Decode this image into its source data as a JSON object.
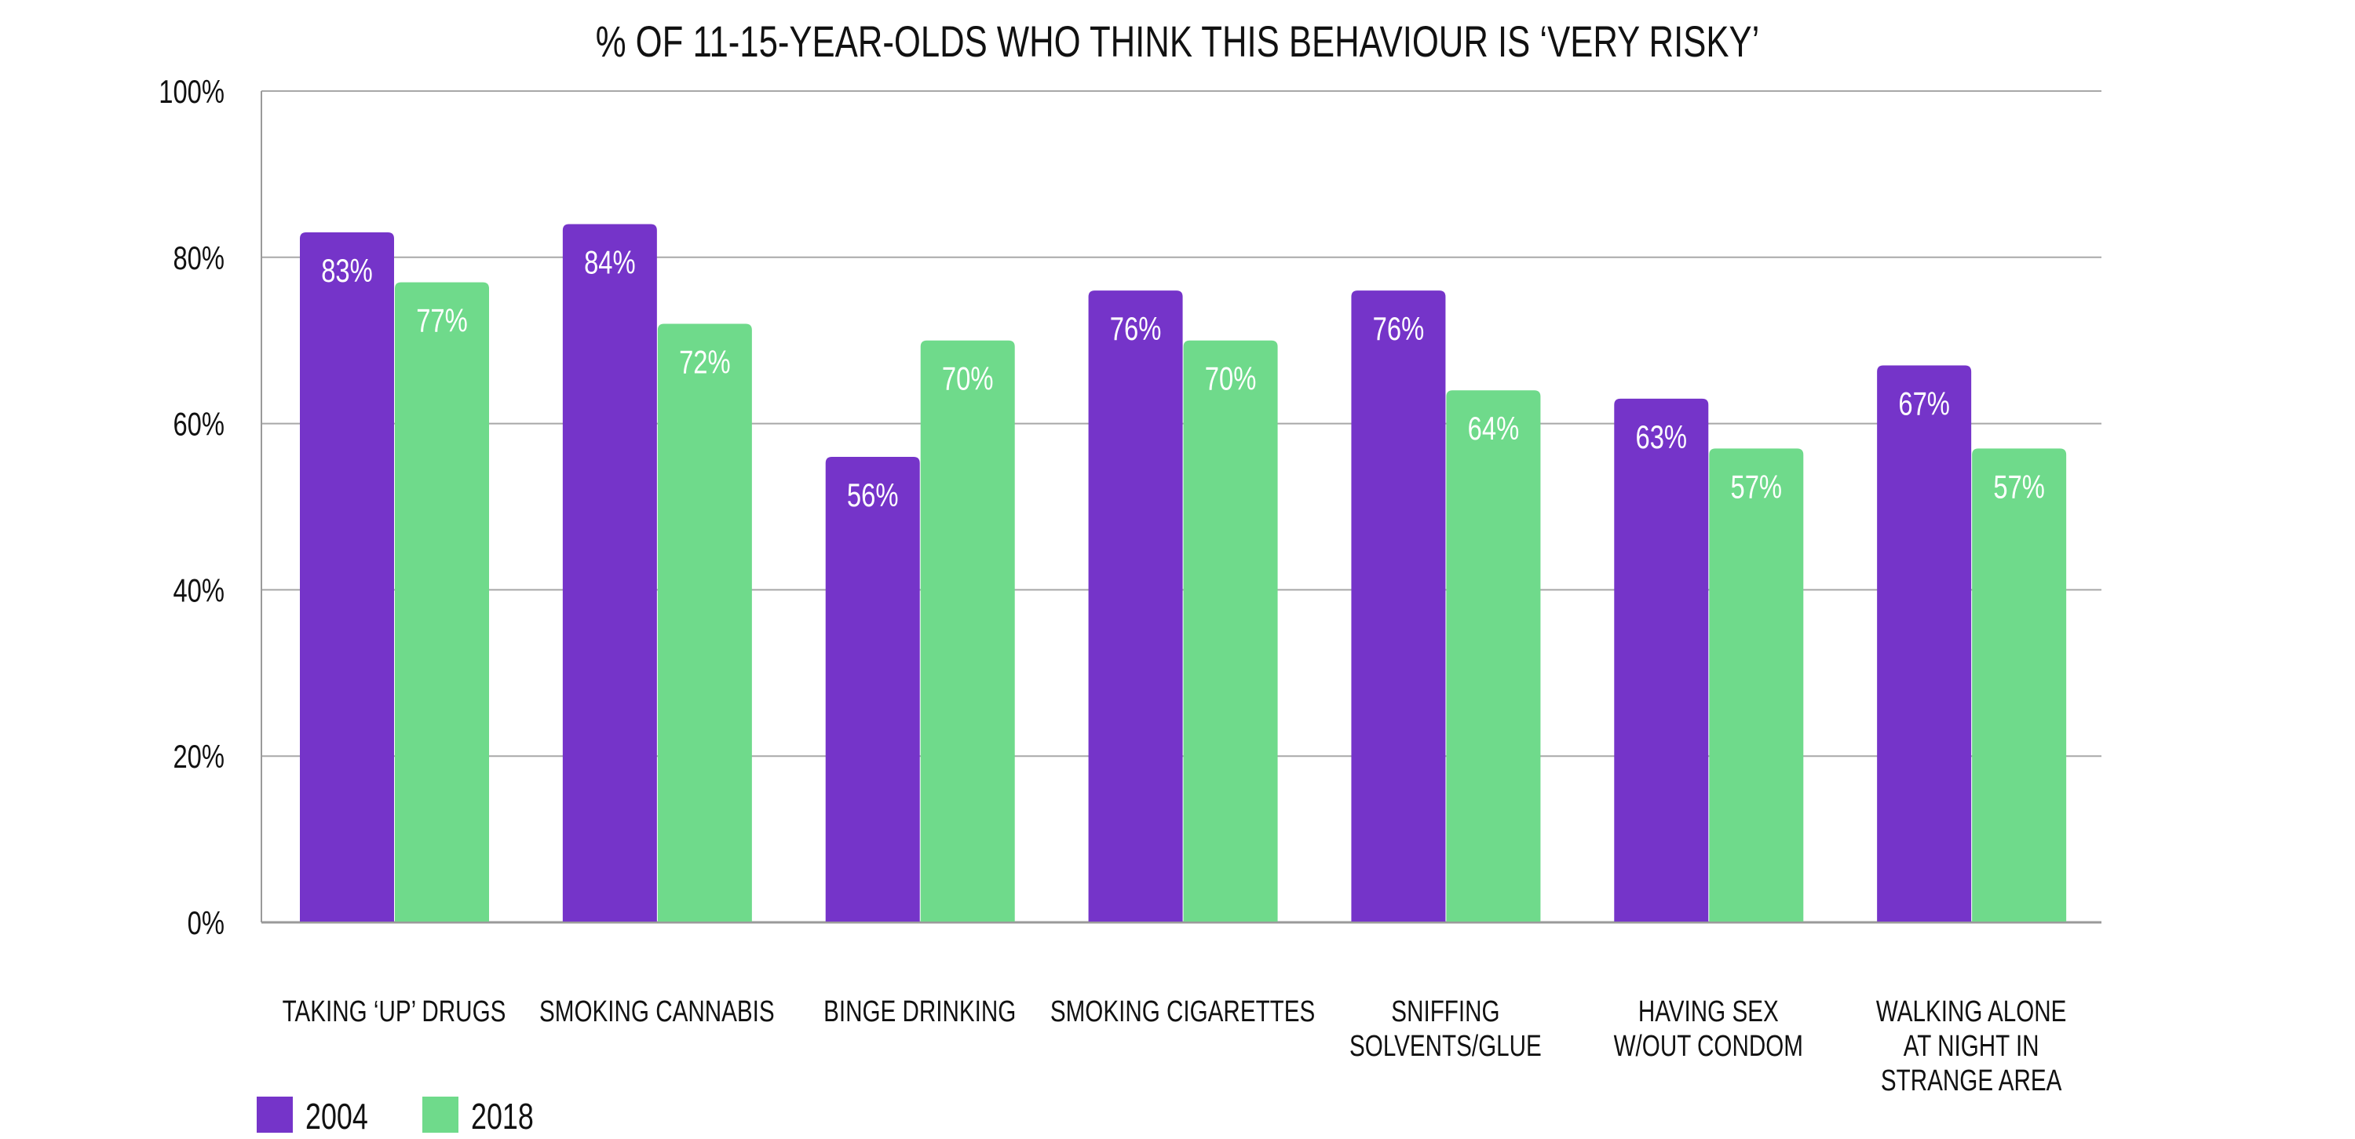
{
  "chart_data": {
    "type": "bar",
    "title": "% OF 11-15-YEAR-OLDS WHO THINK THIS BEHAVIOUR IS ‘VERY RISKY’",
    "xlabel": "",
    "ylabel": "",
    "ylim": [
      0,
      100
    ],
    "yticks": [
      "0%",
      "20%",
      "40%",
      "60%",
      "80%",
      "100%"
    ],
    "grid": true,
    "legend_position": "bottom-left",
    "categories": [
      [
        "TAKING ‘UP’ DRUGS"
      ],
      [
        "SMOKING CANNABIS"
      ],
      [
        "BINGE DRINKING"
      ],
      [
        "SMOKING CIGARETTES"
      ],
      [
        "SNIFFING",
        "SOLVENTS/GLUE"
      ],
      [
        "HAVING SEX",
        "W/OUT CONDOM"
      ],
      [
        "WALKING ALONE",
        "AT NIGHT IN",
        "STRANGE AREA"
      ]
    ],
    "series": [
      {
        "name": "2004",
        "color": "#7534C9",
        "values": [
          83,
          84,
          56,
          76,
          76,
          63,
          67
        ],
        "labels": [
          "83%",
          "84%",
          "56%",
          "76%",
          "76%",
          "63%",
          "67%"
        ]
      },
      {
        "name": "2018",
        "color": "#6FDA8B",
        "values": [
          77,
          72,
          70,
          70,
          64,
          57,
          57
        ],
        "labels": [
          "77%",
          "72%",
          "70%",
          "70%",
          "64%",
          "57%",
          "57%"
        ]
      }
    ]
  }
}
